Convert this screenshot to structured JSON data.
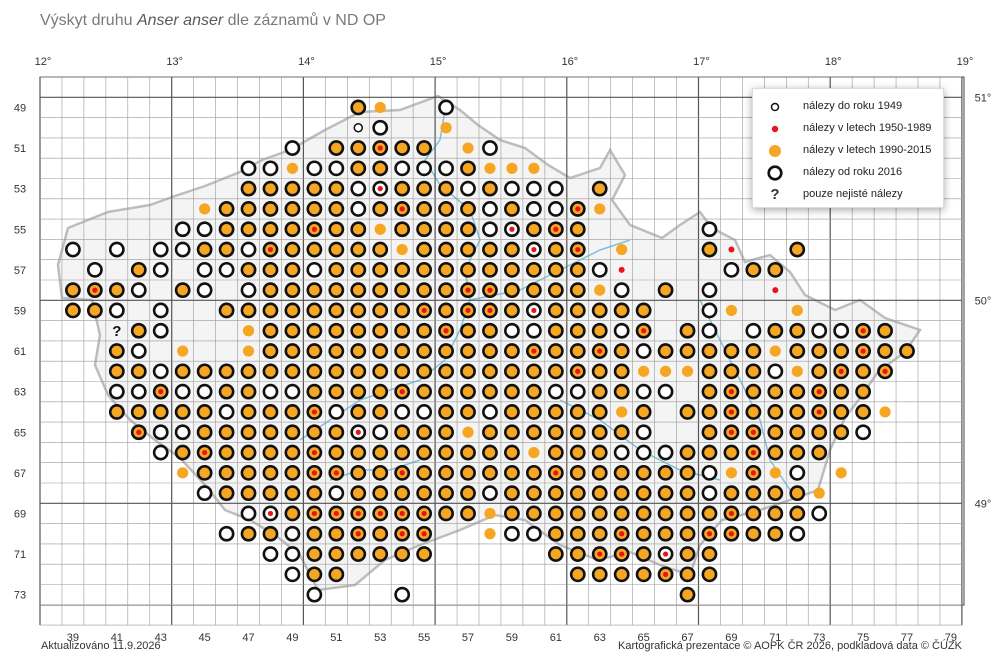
{
  "title": {
    "prefix": "Výskyt druhu ",
    "species": "Anser anser",
    "suffix": " dle záznamů v ND OP"
  },
  "footer": {
    "updated": "Aktualizováno 11.9.2026",
    "credits": "Kartografická prezentace © AOPK ČR 2026, podkladová data © ČÚZK"
  },
  "axes": {
    "longitude_labels": [
      "12°",
      "13°",
      "14°",
      "15°",
      "16°",
      "17°",
      "18°",
      "19°"
    ],
    "latitude_labels": [
      "51°",
      "50°",
      "49°"
    ],
    "column_labels": [
      "39",
      "41",
      "43",
      "45",
      "47",
      "49",
      "51",
      "53",
      "55",
      "57",
      "59",
      "61",
      "63",
      "65",
      "67",
      "69",
      "71",
      "73",
      "75",
      "77",
      "79"
    ],
    "row_labels": [
      "49",
      "51",
      "53",
      "55",
      "57",
      "59",
      "61",
      "63",
      "65",
      "67",
      "69",
      "71",
      "73"
    ]
  },
  "legend": {
    "items": [
      {
        "symbol": "small-ring",
        "label": "nálezy do roku 1949"
      },
      {
        "symbol": "red-dot",
        "label": "nálezy v letech 1950-1989"
      },
      {
        "symbol": "orange-dot",
        "label": "nálezy v letech 1990-2015"
      },
      {
        "symbol": "big-ring",
        "label": "nálezy od roku 2016"
      },
      {
        "symbol": "question",
        "label": "pouze nejisté nálezy"
      }
    ]
  },
  "colors": {
    "orange": "#f5a623",
    "red": "#e8141b",
    "ring": "#111111",
    "grid": "#9a9a9a",
    "major_grid": "#555555",
    "border": "#bdbdbd",
    "river": "#7fc1dc"
  },
  "chart_data": {
    "type": "grid-occurrence-map",
    "field_columns": [
      38,
      39,
      40,
      41,
      42,
      43,
      44,
      45,
      46,
      47,
      48,
      49,
      50,
      51,
      52,
      53,
      54,
      55,
      56,
      57,
      58,
      59,
      60,
      61,
      62,
      63,
      64,
      65,
      66,
      67,
      68,
      69,
      70,
      71,
      72,
      73,
      74,
      75,
      76,
      77,
      78,
      79
    ],
    "field_rows": [
      48,
      49,
      50,
      51,
      52,
      53,
      54,
      55,
      56,
      57,
      58,
      59,
      60,
      61,
      62,
      63,
      64,
      65,
      66,
      67,
      68,
      69,
      70,
      71,
      72,
      73,
      74
    ],
    "symbol_codes": {
      "O": "orange filled square with thick ring (1990-2015 + since 2016)",
      "R": "ring only (since 2016)",
      "o": "orange dot only (1990-2015)",
      "r": "red dot only (1950-1989)",
      "s": "small ring (until 1949)",
      "Z": "orange + red + ring",
      "X": "ring with red dot",
      "?": "uncertain only"
    },
    "record_rows": [
      {
        "row": 49,
        "cells": {
          "52": "O",
          "53": "o",
          "56": "R"
        }
      },
      {
        "row": 50,
        "cells": {
          "52": "s",
          "53": "R",
          "56": "o"
        }
      },
      {
        "row": 51,
        "cells": {
          "49": "R",
          "51": "O",
          "52": "O",
          "53": "Z",
          "54": "O",
          "55": "O",
          "57": "o",
          "58": "R"
        }
      },
      {
        "row": 52,
        "cells": {
          "47": "R",
          "48": "R",
          "49": "o",
          "50": "R",
          "51": "R",
          "52": "O",
          "53": "O",
          "54": "R",
          "55": "R",
          "56": "R",
          "57": "O",
          "58": "o",
          "59": "o",
          "60": "o"
        }
      },
      {
        "row": 53,
        "cells": {
          "47": "O",
          "48": "O",
          "49": "O",
          "50": "O",
          "51": "O",
          "52": "R",
          "53": "X",
          "54": "O",
          "55": "O",
          "56": "O",
          "57": "R",
          "58": "O",
          "59": "R",
          "60": "R",
          "61": "R",
          "63": "O"
        }
      },
      {
        "row": 54,
        "cells": {
          "45": "o",
          "46": "O",
          "47": "O",
          "48": "O",
          "49": "O",
          "50": "O",
          "51": "O",
          "52": "R",
          "53": "O",
          "54": "Z",
          "55": "O",
          "56": "O",
          "57": "O",
          "58": "R",
          "59": "O",
          "60": "R",
          "61": "R",
          "62": "Z",
          "63": "o"
        }
      },
      {
        "row": 55,
        "cells": {
          "44": "R",
          "45": "R",
          "46": "O",
          "47": "O",
          "48": "O",
          "49": "O",
          "50": "Z",
          "51": "O",
          "52": "O",
          "53": "o",
          "54": "O",
          "55": "O",
          "56": "O",
          "57": "O",
          "58": "R",
          "59": "X",
          "60": "O",
          "61": "Z",
          "62": "O",
          "68": "R"
        }
      },
      {
        "row": 56,
        "cells": {
          "39": "R",
          "41": "R",
          "43": "R",
          "44": "R",
          "45": "O",
          "46": "O",
          "47": "R",
          "48": "Z",
          "49": "O",
          "50": "O",
          "51": "O",
          "52": "O",
          "53": "O",
          "54": "o",
          "55": "O",
          "56": "O",
          "57": "O",
          "58": "O",
          "59": "O",
          "60": "X",
          "61": "O",
          "62": "Z",
          "64": "o",
          "68": "O",
          "69": "r",
          "72": "O"
        }
      },
      {
        "row": 57,
        "cells": {
          "40": "R",
          "42": "O",
          "43": "R",
          "45": "R",
          "46": "R",
          "47": "O",
          "48": "O",
          "49": "O",
          "50": "R",
          "51": "O",
          "52": "O",
          "53": "O",
          "54": "O",
          "55": "O",
          "56": "O",
          "57": "O",
          "58": "O",
          "59": "O",
          "60": "O",
          "61": "O",
          "62": "O",
          "63": "R",
          "64": "r",
          "69": "R",
          "70": "O",
          "71": "O"
        }
      },
      {
        "row": 58,
        "cells": {
          "39": "O",
          "40": "Z",
          "41": "O",
          "42": "R",
          "44": "O",
          "45": "R",
          "47": "R",
          "48": "O",
          "49": "O",
          "50": "O",
          "51": "O",
          "52": "O",
          "53": "O",
          "54": "O",
          "55": "O",
          "56": "O",
          "57": "Z",
          "58": "Z",
          "59": "O",
          "60": "O",
          "61": "O",
          "62": "O",
          "63": "o",
          "64": "R",
          "66": "O",
          "68": "R",
          "71": "r"
        }
      },
      {
        "row": 59,
        "cells": {
          "39": "O",
          "40": "O",
          "41": "R",
          "43": "R",
          "46": "O",
          "47": "O",
          "48": "O",
          "49": "O",
          "50": "O",
          "51": "O",
          "52": "O",
          "53": "O",
          "54": "O",
          "55": "Z",
          "56": "O",
          "57": "Z",
          "58": "Z",
          "59": "O",
          "60": "X",
          "61": "O",
          "62": "O",
          "63": "O",
          "64": "O",
          "65": "O",
          "68": "R",
          "69": "o",
          "72": "o"
        }
      },
      {
        "row": 60,
        "cells": {
          "41": "?",
          "42": "O",
          "43": "R",
          "47": "o",
          "48": "O",
          "49": "O",
          "50": "O",
          "51": "O",
          "52": "O",
          "53": "O",
          "54": "O",
          "55": "O",
          "56": "Z",
          "57": "O",
          "58": "O",
          "59": "R",
          "60": "R",
          "61": "O",
          "62": "O",
          "63": "O",
          "64": "R",
          "65": "Z",
          "67": "O",
          "68": "R",
          "70": "R",
          "71": "O",
          "72": "O",
          "73": "R",
          "74": "R",
          "75": "Z",
          "76": "O"
        }
      },
      {
        "row": 61,
        "cells": {
          "41": "O",
          "42": "R",
          "44": "o",
          "47": "o",
          "48": "O",
          "49": "O",
          "50": "O",
          "51": "O",
          "52": "O",
          "53": "O",
          "54": "O",
          "55": "O",
          "56": "O",
          "57": "O",
          "58": "O",
          "59": "O",
          "60": "Z",
          "61": "O",
          "62": "O",
          "63": "Z",
          "64": "O",
          "65": "R",
          "66": "O",
          "67": "O",
          "68": "O",
          "69": "O",
          "70": "O",
          "71": "o",
          "72": "O",
          "73": "O",
          "74": "O",
          "75": "Z",
          "76": "O",
          "77": "O"
        }
      },
      {
        "row": 62,
        "cells": {
          "41": "O",
          "42": "O",
          "43": "R",
          "44": "O",
          "45": "O",
          "46": "O",
          "47": "O",
          "48": "O",
          "49": "O",
          "50": "O",
          "51": "O",
          "52": "O",
          "53": "O",
          "54": "O",
          "55": "O",
          "56": "O",
          "57": "O",
          "58": "O",
          "59": "O",
          "60": "O",
          "61": "O",
          "62": "Z",
          "63": "O",
          "64": "O",
          "65": "o",
          "66": "o",
          "67": "o",
          "68": "O",
          "69": "O",
          "70": "O",
          "71": "R",
          "72": "o",
          "73": "O",
          "74": "Z",
          "75": "O",
          "76": "Z"
        }
      },
      {
        "row": 63,
        "cells": {
          "41": "R",
          "42": "R",
          "43": "Z",
          "44": "R",
          "45": "R",
          "46": "O",
          "47": "O",
          "48": "R",
          "49": "R",
          "50": "O",
          "51": "O",
          "52": "O",
          "53": "O",
          "54": "Z",
          "55": "O",
          "56": "O",
          "57": "O",
          "58": "O",
          "59": "O",
          "60": "O",
          "61": "R",
          "62": "R",
          "63": "O",
          "64": "O",
          "65": "R",
          "66": "R",
          "68": "O",
          "69": "Z",
          "70": "O",
          "71": "O",
          "72": "O",
          "73": "Z",
          "74": "O",
          "75": "O"
        }
      },
      {
        "row": 64,
        "cells": {
          "41": "O",
          "42": "O",
          "43": "O",
          "44": "O",
          "45": "O",
          "46": "R",
          "47": "O",
          "48": "O",
          "49": "O",
          "50": "Z",
          "51": "R",
          "52": "O",
          "53": "O",
          "54": "R",
          "55": "R",
          "56": "O",
          "57": "O",
          "58": "R",
          "59": "O",
          "60": "O",
          "61": "O",
          "62": "O",
          "63": "O",
          "64": "o",
          "65": "O",
          "67": "O",
          "68": "O",
          "69": "Z",
          "70": "O",
          "71": "O",
          "72": "O",
          "73": "Z",
          "74": "O",
          "75": "O",
          "76": "o"
        }
      },
      {
        "row": 65,
        "cells": {
          "42": "Z",
          "43": "R",
          "44": "R",
          "45": "O",
          "46": "O",
          "47": "O",
          "48": "O",
          "49": "O",
          "50": "O",
          "51": "O",
          "52": "X",
          "53": "R",
          "54": "O",
          "55": "O",
          "56": "O",
          "57": "o",
          "58": "O",
          "59": "O",
          "60": "O",
          "61": "O",
          "62": "O",
          "63": "O",
          "64": "O",
          "65": "R",
          "68": "O",
          "69": "Z",
          "70": "Z",
          "71": "O",
          "72": "O",
          "73": "O",
          "74": "O",
          "75": "R"
        }
      },
      {
        "row": 66,
        "cells": {
          "43": "R",
          "44": "O",
          "45": "Z",
          "46": "O",
          "47": "O",
          "48": "O",
          "49": "O",
          "50": "Z",
          "51": "O",
          "52": "O",
          "53": "O",
          "54": "O",
          "55": "O",
          "56": "O",
          "57": "O",
          "58": "O",
          "59": "O",
          "60": "o",
          "61": "O",
          "62": "O",
          "63": "O",
          "64": "R",
          "65": "R",
          "66": "R",
          "67": "O",
          "68": "O",
          "69": "O",
          "70": "Z",
          "71": "O",
          "72": "O",
          "73": "O"
        }
      },
      {
        "row": 67,
        "cells": {
          "44": "o",
          "45": "O",
          "46": "O",
          "47": "O",
          "48": "O",
          "49": "O",
          "50": "Z",
          "51": "Z",
          "52": "O",
          "53": "O",
          "54": "Z",
          "55": "O",
          "56": "O",
          "57": "O",
          "58": "O",
          "59": "O",
          "60": "O",
          "61": "Z",
          "62": "O",
          "63": "O",
          "64": "O",
          "65": "O",
          "66": "O",
          "67": "O",
          "68": "R",
          "69": "o",
          "70": "Z",
          "71": "o",
          "72": "R",
          "74": "o"
        }
      },
      {
        "row": 68,
        "cells": {
          "45": "R",
          "46": "O",
          "47": "O",
          "48": "O",
          "49": "O",
          "50": "O",
          "51": "R",
          "52": "O",
          "53": "O",
          "54": "O",
          "55": "O",
          "56": "O",
          "57": "O",
          "58": "R",
          "59": "O",
          "60": "O",
          "61": "O",
          "62": "O",
          "63": "O",
          "64": "O",
          "65": "O",
          "66": "O",
          "67": "O",
          "68": "R",
          "69": "O",
          "70": "O",
          "71": "O",
          "72": "O",
          "73": "o"
        }
      },
      {
        "row": 69,
        "cells": {
          "47": "R",
          "48": "X",
          "49": "O",
          "50": "Z",
          "51": "Z",
          "52": "Z",
          "53": "Z",
          "54": "Z",
          "55": "Z",
          "56": "O",
          "57": "O",
          "58": "o",
          "59": "O",
          "60": "O",
          "61": "O",
          "62": "O",
          "63": "O",
          "64": "O",
          "65": "O",
          "66": "O",
          "67": "O",
          "68": "O",
          "69": "Z",
          "70": "O",
          "71": "O",
          "72": "O",
          "73": "R"
        }
      },
      {
        "row": 70,
        "cells": {
          "46": "R",
          "47": "O",
          "48": "O",
          "49": "R",
          "50": "O",
          "51": "O",
          "52": "Z",
          "53": "O",
          "54": "Z",
          "55": "Z",
          "58": "o",
          "59": "R",
          "60": "R",
          "61": "O",
          "62": "O",
          "63": "O",
          "64": "Z",
          "65": "O",
          "66": "O",
          "67": "O",
          "68": "Z",
          "69": "Z",
          "70": "O",
          "71": "O",
          "72": "R"
        }
      },
      {
        "row": 71,
        "cells": {
          "48": "R",
          "49": "R",
          "50": "O",
          "51": "O",
          "52": "O",
          "53": "O",
          "54": "O",
          "55": "O",
          "61": "O",
          "62": "O",
          "63": "Z",
          "64": "Z",
          "65": "O",
          "66": "X",
          "67": "O",
          "68": "O"
        }
      },
      {
        "row": 72,
        "cells": {
          "49": "R",
          "50": "O",
          "51": "O",
          "62": "O",
          "63": "O",
          "64": "O",
          "65": "O",
          "66": "Z",
          "67": "O",
          "68": "O"
        }
      },
      {
        "row": 73,
        "cells": {
          "50": "R",
          "54": "R",
          "67": "O"
        }
      }
    ]
  }
}
